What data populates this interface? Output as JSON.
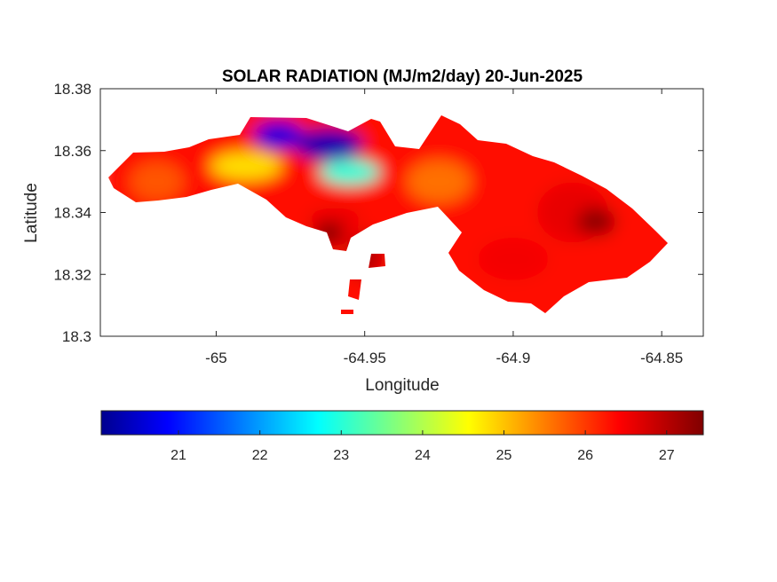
{
  "chart_data": {
    "type": "heatmap",
    "title": "SOLAR RADIATION (MJ/m2/day) 20-Jun-2025",
    "xlabel": "Longitude",
    "ylabel": "Latitude",
    "xlim": [
      -65.039,
      -64.836
    ],
    "ylim": [
      18.3,
      18.38
    ],
    "xticks": [
      "-65",
      "-64.95",
      "-64.9",
      "-64.85"
    ],
    "yticks": [
      "18.38",
      "18.36",
      "18.34",
      "18.32",
      "18.3"
    ],
    "colormap": "jet",
    "colorbar": {
      "location": "bottom",
      "range": [
        20.05,
        27.45
      ],
      "ticks": [
        "21",
        "22",
        "23",
        "24",
        "25",
        "26",
        "27"
      ]
    },
    "grid": false,
    "regions": [
      {
        "description": "north-central low",
        "lon": -64.962,
        "lat": 18.362,
        "value": 20.3
      },
      {
        "description": "northwest lobe",
        "lon": -64.979,
        "lat": 18.365,
        "value": 20.6
      },
      {
        "description": "west coast",
        "lon": -65.02,
        "lat": 18.35,
        "value": 25.8
      },
      {
        "description": "western central strip",
        "lon": -64.99,
        "lat": 18.355,
        "value": 24.8
      },
      {
        "description": "central ridge",
        "lon": -64.955,
        "lat": 18.353,
        "value": 23.0
      },
      {
        "description": "central south coast",
        "lon": -64.96,
        "lat": 18.338,
        "value": 26.6
      },
      {
        "description": "southwest bay",
        "lon": -64.962,
        "lat": 18.333,
        "value": 27.3
      },
      {
        "description": "east-central",
        "lon": -64.925,
        "lat": 18.35,
        "value": 25.6
      },
      {
        "description": "eastern lobe",
        "lon": -64.88,
        "lat": 18.34,
        "value": 26.6
      },
      {
        "description": "eastern core",
        "lon": -64.872,
        "lat": 18.337,
        "value": 27.3
      },
      {
        "description": "southeast",
        "lon": -64.9,
        "lat": 18.325,
        "value": 26.5
      },
      {
        "description": "south islet",
        "lon": -64.95,
        "lat": 18.326,
        "value": 27.0
      }
    ],
    "colors": {
      "jet_dark_blue": "#00008f",
      "jet_blue": "#0000ff",
      "jet_cyan": "#00ffff",
      "jet_yellow": "#ffff00",
      "jet_red": "#ff0000",
      "jet_dark_red": "#800000",
      "axes_edge": "#262626",
      "background": "#ffffff"
    }
  }
}
